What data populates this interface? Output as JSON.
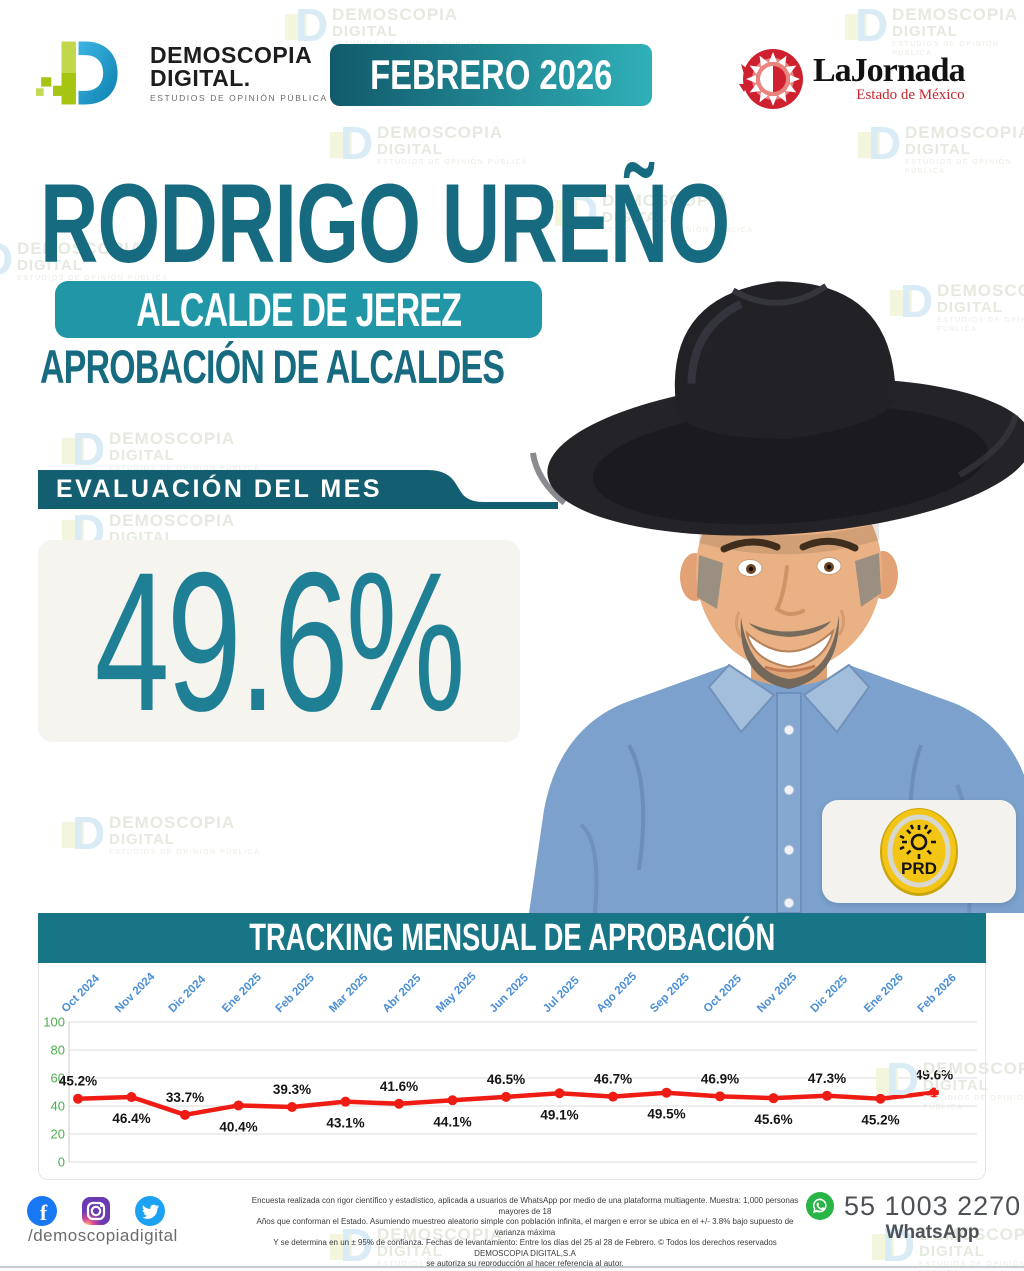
{
  "header": {
    "brand": {
      "name_line1": "DEMOSCOPIA",
      "name_line2": "DIGITAL.",
      "tagline": "ESTUDIOS DE OPINIÓN PÚBLICA"
    },
    "period_banner": "FEBRERO 2026",
    "partner": {
      "name": "LaJornada",
      "subtitle": "Estado de México"
    }
  },
  "hero": {
    "title": "RODRIGO UREÑO",
    "badge": "ALCALDE DE JEREZ",
    "section_label": "APROBACIÓN DE ALCALDES",
    "party": "PRD"
  },
  "evaluation": {
    "label": "EVALUACIÓN DEL MES",
    "value": "49.6%"
  },
  "chart_data": {
    "type": "line",
    "title": "TRACKING MENSUAL DE APROBACIÓN",
    "categories": [
      "Oct 2024",
      "Nov 2024",
      "Dic 2024",
      "Ene 2025",
      "Feb 2025",
      "Mar 2025",
      "Abr 2025",
      "May 2025",
      "Jun 2025",
      "Jul 2025",
      "Ago 2025",
      "Sep 2025",
      "Oct 2025",
      "Nov 2025",
      "Dic 2025",
      "Ene 2026",
      "Feb 2026"
    ],
    "values": [
      45.2,
      46.4,
      33.7,
      40.4,
      39.3,
      43.1,
      41.6,
      44.1,
      46.5,
      49.1,
      46.7,
      49.5,
      46.9,
      45.6,
      47.3,
      45.2,
      49.6
    ],
    "labels": [
      "45.2%",
      "46.4%",
      "33.7%",
      "40.4%",
      "39.3%",
      "43.1%",
      "41.6%",
      "44.1%",
      "46.5%",
      "49.1%",
      "46.7%",
      "49.5%",
      "46.9%",
      "45.6%",
      "47.3%",
      "45.2%",
      "49.6%"
    ],
    "xlabel": "",
    "ylabel": "",
    "ylim": [
      0,
      100
    ],
    "yticks": [
      0,
      20,
      40,
      60,
      80,
      100
    ],
    "grid": true,
    "legend": "none",
    "line_color": "#ee1c15",
    "month_label_color": "#4a8ed6",
    "ytick_color": "#4cb04f",
    "value_label_color": "#151515"
  },
  "watermark": {
    "line1": "DEMOSCOPIA",
    "line2": "DIGITAL",
    "line3": "ESTUDIOS DE OPINIÓN PÚBLICA"
  },
  "footer": {
    "social_handle": "/demoscopiadigital",
    "disclaimer_lines": [
      "Encuesta realizada con rigor científico y estadístico, aplicada a usuarios de WhatsApp por medio de una plataforma multiagente. Muestra: 1,000 personas mayores de 18",
      "Años que conforman el Estado. Asumiendo muestreo aleatorio simple con población infinita, el margen e error se ubica en el +/- 3.8% bajo supuesto de varianza máxima",
      "Y se determina en un ± 95% de confianza. Fechas de levantamiento: Entre los días del 25 al 28 de Febrero. © Todos los derechos reservados DEMOSCOPIA DIGITAL,S.A",
      "se autoriza su reproducción al hacer referencia al autor."
    ],
    "whatsapp": {
      "number": "55 1003 2270",
      "label": "WhatsApp"
    }
  },
  "colors": {
    "title_teal": "#176b80",
    "badge_teal": "#2196a6",
    "banner_dark_teal": "#135e70",
    "tracking_teal": "#177585",
    "score_teal": "#1e7f95",
    "jornada_red": "#c9252c",
    "prd_yellow": "#f3c515",
    "whatsapp_green": "#28b446",
    "facebook_blue": "#1877f2",
    "twitter_blue": "#1da1f2"
  }
}
